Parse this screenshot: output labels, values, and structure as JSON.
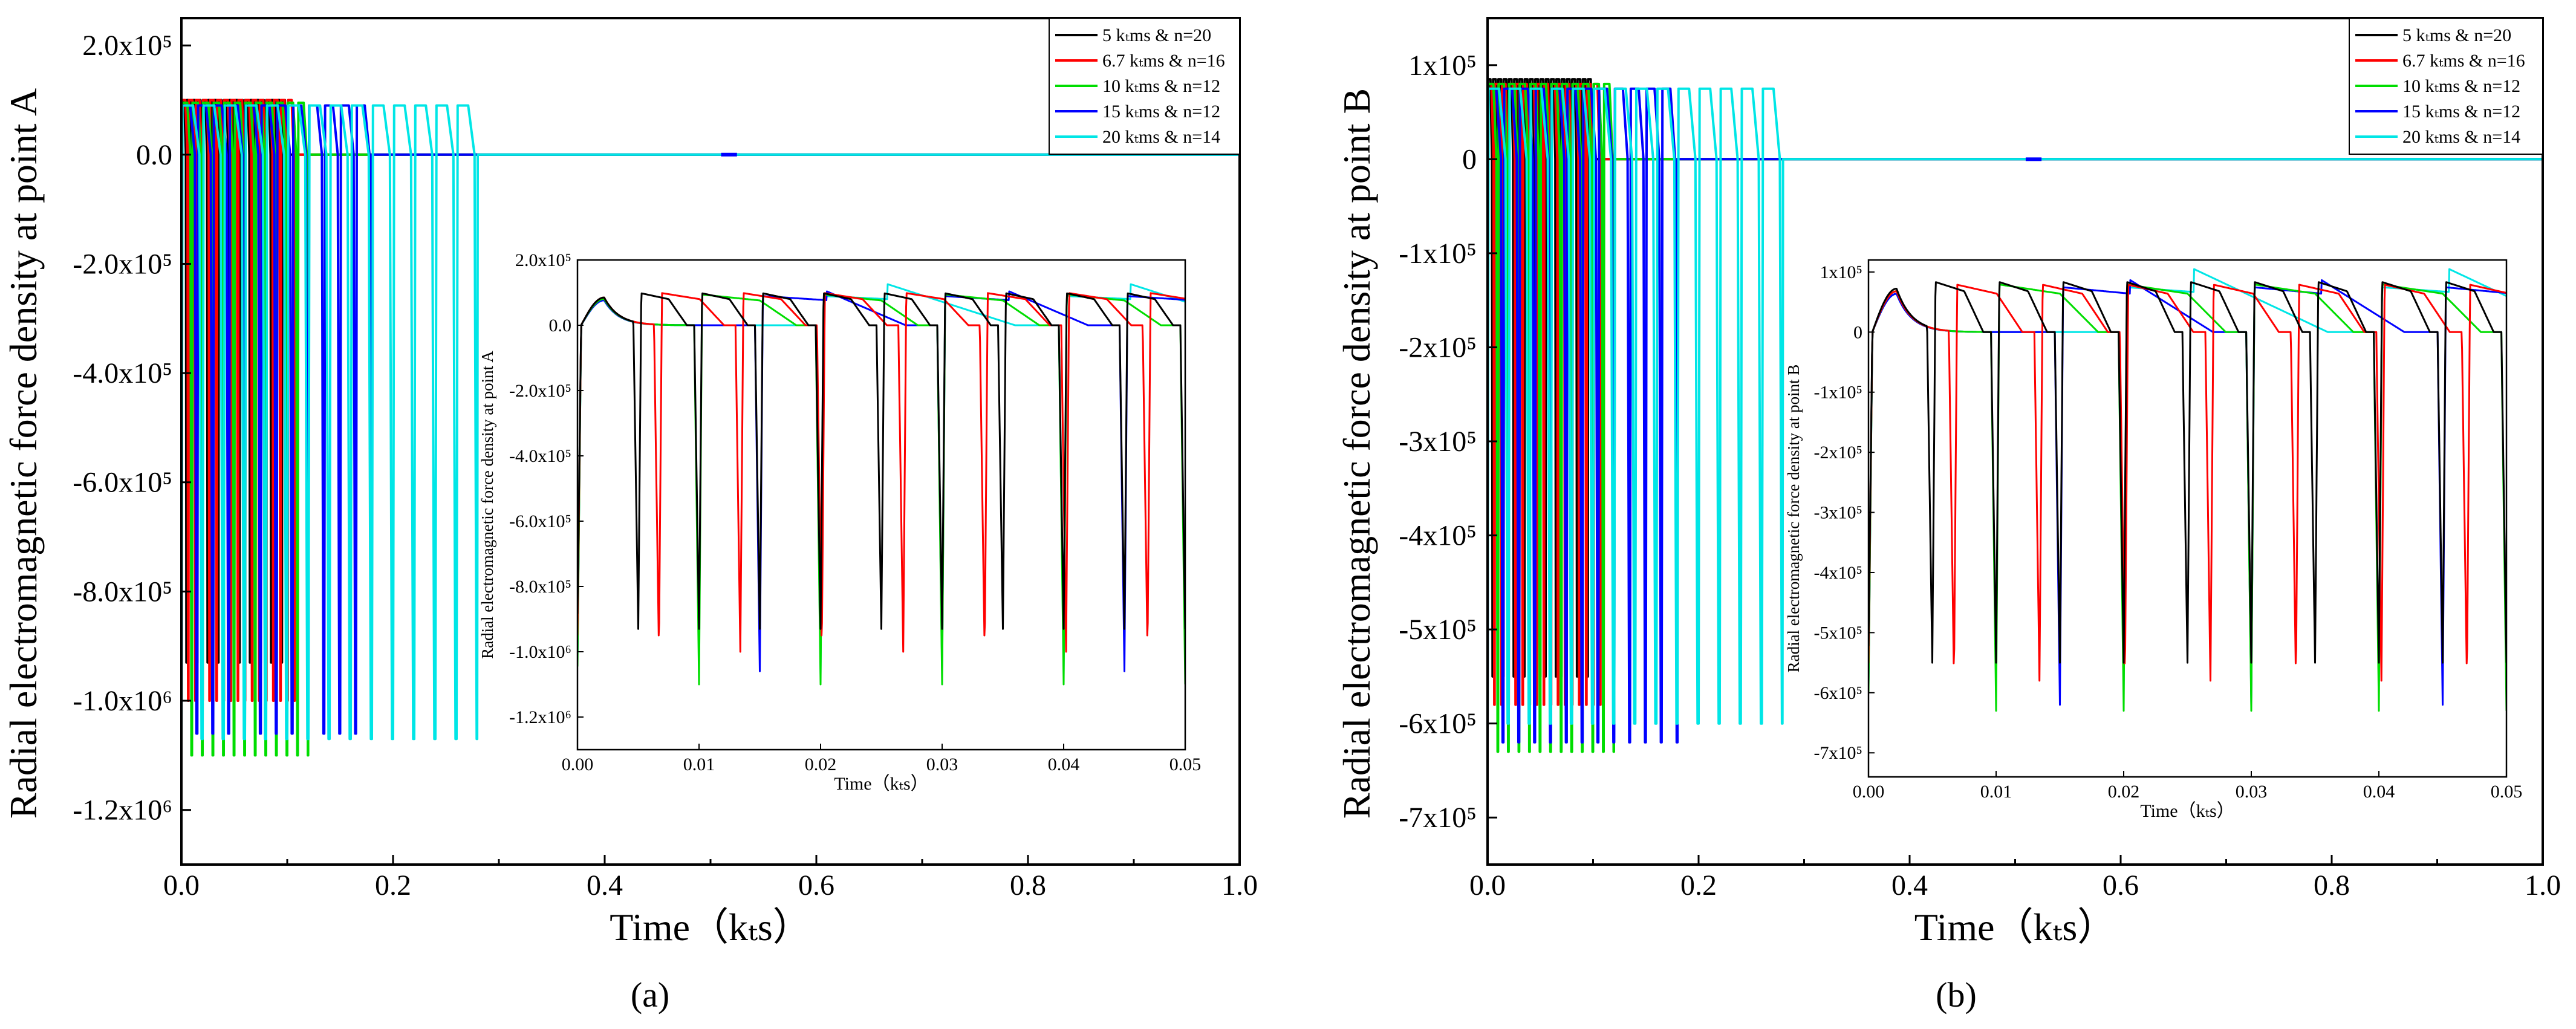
{
  "chart_data": [
    {
      "panel": "(a)",
      "type": "line",
      "point": "A",
      "ylabel": "Radial electromagnetic force density at point A",
      "xlabel": "Time（kₜs）",
      "xlim": [
        0.0,
        1.0
      ],
      "ylim": [
        -1.3,
        0.25
      ],
      "y_unit_note": "x1e6",
      "xticks": [
        0.0,
        0.2,
        0.4,
        0.6,
        0.8,
        1.0
      ],
      "xtick_labels": [
        "0.0",
        "0.2",
        "0.4",
        "0.6",
        "0.8",
        "1.0"
      ],
      "yticks": [
        0.2,
        0.0,
        -0.2,
        -0.4,
        -0.6,
        -0.8,
        -1.0,
        -1.2
      ],
      "ytick_labels": [
        "2.0x10⁵",
        "0.0",
        "-2.0x10⁵",
        "-4.0x10⁵",
        "-6.0x10⁵",
        "-8.0x10⁵",
        "-1.0x10⁶",
        "-1.2x10⁶"
      ],
      "legend": {
        "placement": "top-right",
        "entries": [
          {
            "label": "5 kₜms & n=20",
            "color": "#000000"
          },
          {
            "label": "6.7 kₜms & n=16",
            "color": "#ff0000"
          },
          {
            "label": "10 kₜms & n=12",
            "color": "#00dd00"
          },
          {
            "label": "15 kₜms & n=12",
            "color": "#0000ff"
          },
          {
            "label": "20 kₜms & n=14",
            "color": "#00e6e6"
          }
        ]
      },
      "series": [
        {
          "name": "5 kₜms & n=20",
          "color": "#000000",
          "period": 0.005,
          "count": 20,
          "peak": 0.1,
          "trough": -0.93
        },
        {
          "name": "6.7 kₜms & n=16",
          "color": "#ff0000",
          "period": 0.0067,
          "count": 16,
          "peak": 0.1,
          "trough": -1.0
        },
        {
          "name": "10 kₜms & n=12",
          "color": "#00dd00",
          "period": 0.01,
          "count": 12,
          "peak": 0.095,
          "trough": -1.1
        },
        {
          "name": "15 kₜms & n=12",
          "color": "#0000ff",
          "period": 0.015,
          "count": 12,
          "peak": 0.09,
          "trough": -1.06
        },
        {
          "name": "20 kₜms & n=14",
          "color": "#00e6e6",
          "period": 0.02,
          "count": 14,
          "peak": 0.09,
          "trough": -1.07
        }
      ],
      "inset": {
        "ylabel": "Radial electromagnetic force density at point A",
        "xlabel": "Time（kₜs）",
        "xlim": [
          0.0,
          0.05
        ],
        "ylim": [
          -1.3,
          0.2
        ],
        "xticks": [
          0.0,
          0.01,
          0.02,
          0.03,
          0.04,
          0.05
        ],
        "xtick_labels": [
          "0.00",
          "0.01",
          "0.02",
          "0.03",
          "0.04",
          "0.05"
        ],
        "yticks": [
          0.2,
          0.0,
          -0.2,
          -0.4,
          -0.6,
          -0.8,
          -1.0,
          -1.2
        ],
        "ytick_labels": [
          "2.0x10⁵",
          "0.0",
          "-2.0x10⁵",
          "-4.0x10⁵",
          "-6.0x10⁵",
          "-8.0x10⁵",
          "-1.0x10⁶",
          "-1.2x10⁶"
        ]
      }
    },
    {
      "panel": "(b)",
      "type": "line",
      "point": "B",
      "ylabel": "Radial electromagnetic force density at point B",
      "xlabel": "Time（kₜs）",
      "xlim": [
        0.0,
        1.0
      ],
      "ylim": [
        -7.5,
        1.5
      ],
      "y_unit_note": "x1e5",
      "xticks": [
        0.0,
        0.2,
        0.4,
        0.6,
        0.8,
        1.0
      ],
      "xtick_labels": [
        "0.0",
        "0.2",
        "0.4",
        "0.6",
        "0.8",
        "1.0"
      ],
      "yticks": [
        1,
        0,
        -1,
        -2,
        -3,
        -4,
        -5,
        -6,
        -7
      ],
      "ytick_labels": [
        "1x10⁵",
        "0",
        "-1x10⁵",
        "-2x10⁵",
        "-3x10⁵",
        "-4x10⁵",
        "-5x10⁵",
        "-6x10⁵",
        "-7x10⁵"
      ],
      "legend": {
        "placement": "top-right",
        "entries": [
          {
            "label": "5 kₜms & n=20",
            "color": "#000000"
          },
          {
            "label": "6.7 kₜms & n=16",
            "color": "#ff0000"
          },
          {
            "label": "10 kₜms & n=12",
            "color": "#00dd00"
          },
          {
            "label": "15 kₜms & n=12",
            "color": "#0000ff"
          },
          {
            "label": "20 kₜms & n=14",
            "color": "#00e6e6"
          }
        ]
      },
      "series": [
        {
          "name": "5 kₜms & n=20",
          "color": "#000000",
          "period": 0.005,
          "count": 20,
          "peak": 0.85,
          "trough": -5.5
        },
        {
          "name": "6.7 kₜms & n=16",
          "color": "#ff0000",
          "period": 0.0067,
          "count": 16,
          "peak": 0.8,
          "trough": -5.8
        },
        {
          "name": "10 kₜms & n=12",
          "color": "#00dd00",
          "period": 0.01,
          "count": 12,
          "peak": 0.8,
          "trough": -6.3
        },
        {
          "name": "15 kₜms & n=12",
          "color": "#0000ff",
          "period": 0.015,
          "count": 12,
          "peak": 0.75,
          "trough": -6.2
        },
        {
          "name": "20 kₜms & n=14",
          "color": "#00e6e6",
          "period": 0.02,
          "count": 14,
          "peak": 0.75,
          "trough": -6.0
        }
      ],
      "inset": {
        "ylabel": "Radial electromagnetic force density at point B",
        "xlabel": "Time（kₜs）",
        "xlim": [
          0.0,
          0.05
        ],
        "ylim": [
          -7.4,
          1.2
        ],
        "xticks": [
          0.0,
          0.01,
          0.02,
          0.03,
          0.04,
          0.05
        ],
        "xtick_labels": [
          "0.00",
          "0.01",
          "0.02",
          "0.03",
          "0.04",
          "0.05"
        ],
        "yticks": [
          1,
          0,
          -1,
          -2,
          -3,
          -4,
          -5,
          -6,
          -7
        ],
        "ytick_labels": [
          "1x10⁵",
          "0",
          "-1x10⁵",
          "-2x10⁵",
          "-3x10⁵",
          "-4x10⁵",
          "-5x10⁵",
          "-6x10⁵",
          "-7x10⁵"
        ]
      }
    }
  ]
}
